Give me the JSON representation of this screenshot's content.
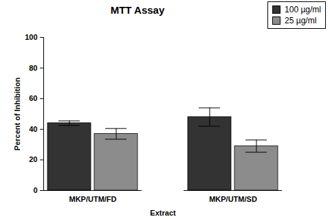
{
  "chart_data": {
    "type": "bar",
    "title": "MTT Assay",
    "x_label": "Extract",
    "y_label": "Percent of Inhibition",
    "categories": [
      "MKP/UTM/FD",
      "MKP/UTM/SD"
    ],
    "series": [
      {
        "name": "100 µg/ml",
        "color": "#333333",
        "values": [
          44,
          48
        ],
        "errors": [
          1.5,
          6
        ]
      },
      {
        "name": "25 µg/ml",
        "color": "#8c8c8c",
        "values": [
          37,
          29
        ],
        "errors": [
          3.5,
          4
        ]
      }
    ],
    "ylim": [
      0,
      100
    ],
    "yticks": [
      0,
      20,
      40,
      60,
      80,
      100
    ],
    "grid": false,
    "legend": "top-right"
  }
}
